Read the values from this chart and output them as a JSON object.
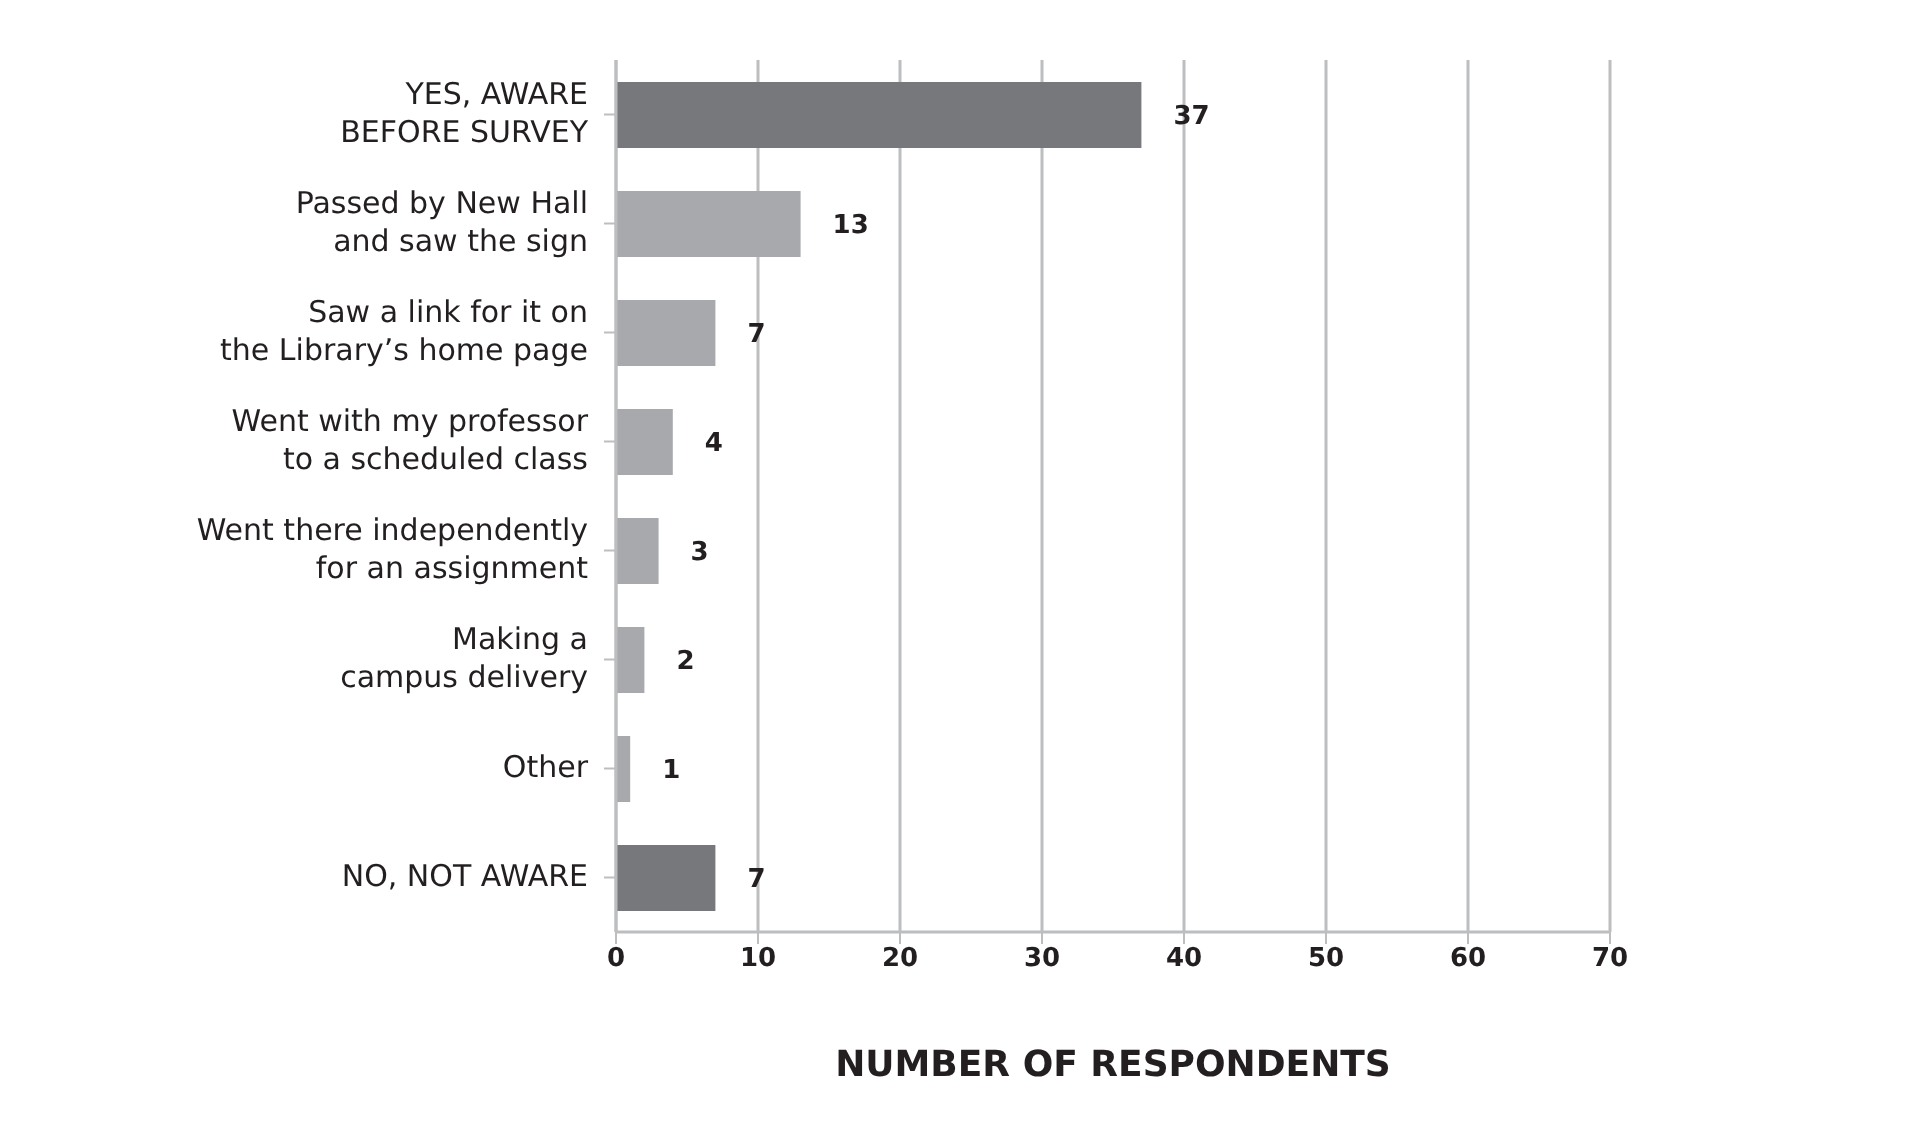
{
  "chart_data": {
    "type": "bar",
    "orientation": "horizontal",
    "categories": [
      "YES, AWARE BEFORE SURVEY",
      "Passed by New Hall and saw the sign",
      "Saw a link for it on the Library’s home page",
      "Went with my professor to a scheduled class",
      "Went there independently for an assignment",
      "Making a campus delivery",
      "Other",
      "NO, NOT AWARE"
    ],
    "values": [
      37,
      13,
      7,
      4,
      3,
      2,
      1,
      7
    ],
    "colors": [
      "#77787b",
      "#a7a9ac",
      "#a7a9ac",
      "#a7a9ac",
      "#a7a9ac",
      "#a7a9ac",
      "#a7a9ac",
      "#77787b"
    ],
    "xlim": [
      0,
      70
    ],
    "xticks": [
      0,
      10,
      20,
      30,
      40,
      50,
      60,
      70
    ],
    "xlabel": "NUMBER OF RESPONDENTS",
    "grid": "x",
    "data_labels": true
  }
}
